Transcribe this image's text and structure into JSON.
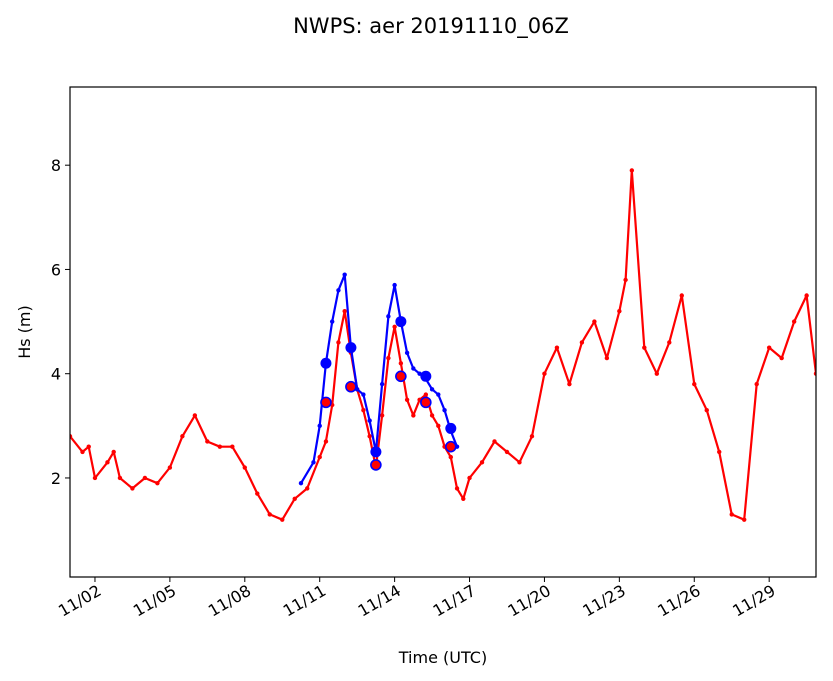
{
  "chart_data": {
    "type": "line",
    "title": "NWPS: aer 20191110_06Z",
    "xlabel": "Time (UTC)",
    "ylabel": "Hs (m)",
    "xlim": [
      "2019-11-01T00:00",
      "2019-11-30T21:00"
    ],
    "ylim": [
      0.1,
      9.5
    ],
    "x_tick_labels": [
      "11/02",
      "11/05",
      "11/08",
      "11/11",
      "11/14",
      "11/17",
      "11/20",
      "11/23",
      "11/26",
      "11/29"
    ],
    "x_tick_dates": [
      "2019-11-02",
      "2019-11-05",
      "2019-11-08",
      "2019-11-11",
      "2019-11-14",
      "2019-11-17",
      "2019-11-20",
      "2019-11-23",
      "2019-11-26",
      "2019-11-29"
    ],
    "y_ticks": [
      2,
      4,
      6,
      8
    ],
    "grid": false,
    "legend": "none",
    "series": [
      {
        "color": "#ff0000",
        "marker": "dot",
        "x": [
          "2019-11-01T00:00",
          "2019-11-01T12:00",
          "2019-11-01T18:00",
          "2019-11-02T00:00",
          "2019-11-02T12:00",
          "2019-11-02T18:00",
          "2019-11-03T00:00",
          "2019-11-03T12:00",
          "2019-11-04T00:00",
          "2019-11-04T12:00",
          "2019-11-05T00:00",
          "2019-11-05T12:00",
          "2019-11-06T00:00",
          "2019-11-06T12:00",
          "2019-11-07T00:00",
          "2019-11-07T12:00",
          "2019-11-08T00:00",
          "2019-11-08T12:00",
          "2019-11-09T00:00",
          "2019-11-09T12:00",
          "2019-11-10T00:00",
          "2019-11-10T12:00",
          "2019-11-11T00:00",
          "2019-11-11T06:00",
          "2019-11-11T12:00",
          "2019-11-11T18:00",
          "2019-11-12T00:00",
          "2019-11-12T06:00",
          "2019-11-12T12:00",
          "2019-11-12T18:00",
          "2019-11-13T00:00",
          "2019-11-13T06:00",
          "2019-11-13T12:00",
          "2019-11-13T18:00",
          "2019-11-14T00:00",
          "2019-11-14T06:00",
          "2019-11-14T12:00",
          "2019-11-14T18:00",
          "2019-11-15T00:00",
          "2019-11-15T06:00",
          "2019-11-15T12:00",
          "2019-11-15T18:00",
          "2019-11-16T00:00",
          "2019-11-16T06:00",
          "2019-11-16T12:00",
          "2019-11-16T18:00",
          "2019-11-17T00:00",
          "2019-11-17T12:00",
          "2019-11-18T00:00",
          "2019-11-18T12:00",
          "2019-11-19T00:00",
          "2019-11-19T12:00",
          "2019-11-20T00:00",
          "2019-11-20T12:00",
          "2019-11-21T00:00",
          "2019-11-21T12:00",
          "2019-11-22T00:00",
          "2019-11-22T12:00",
          "2019-11-23T00:00",
          "2019-11-23T06:00",
          "2019-11-23T12:00",
          "2019-11-24T00:00",
          "2019-11-24T12:00",
          "2019-11-25T00:00",
          "2019-11-25T12:00",
          "2019-11-26T00:00",
          "2019-11-26T12:00",
          "2019-11-27T00:00",
          "2019-11-27T12:00",
          "2019-11-28T00:00",
          "2019-11-28T12:00",
          "2019-11-29T00:00",
          "2019-11-29T12:00",
          "2019-11-30T00:00",
          "2019-11-30T12:00",
          "2019-11-30T21:00"
        ],
        "y": [
          2.8,
          2.5,
          2.6,
          2.0,
          2.3,
          2.5,
          2.0,
          1.8,
          2.0,
          1.9,
          2.2,
          2.8,
          3.2,
          2.7,
          2.6,
          2.6,
          2.2,
          1.7,
          1.3,
          1.2,
          1.6,
          1.8,
          2.4,
          2.7,
          3.4,
          4.6,
          5.2,
          4.4,
          3.7,
          3.3,
          2.8,
          2.2,
          3.2,
          4.3,
          4.9,
          4.2,
          3.5,
          3.2,
          3.5,
          3.6,
          3.2,
          3.0,
          2.6,
          2.4,
          1.8,
          1.6,
          2.0,
          2.3,
          2.7,
          2.5,
          2.3,
          2.8,
          4.0,
          4.5,
          3.8,
          4.6,
          5.0,
          4.3,
          5.2,
          5.8,
          7.9,
          4.5,
          4.0,
          4.6,
          5.5,
          3.8,
          3.3,
          2.5,
          1.3,
          1.2,
          3.8,
          4.5,
          4.3,
          5.0,
          5.5,
          4.0
        ]
      },
      {
        "color": "#0000ff",
        "marker": "dot",
        "x": [
          "2019-11-10T06:00",
          "2019-11-10T18:00",
          "2019-11-11T00:00",
          "2019-11-11T06:00",
          "2019-11-11T12:00",
          "2019-11-11T18:00",
          "2019-11-12T00:00",
          "2019-11-12T06:00",
          "2019-11-12T12:00",
          "2019-11-12T18:00",
          "2019-11-13T00:00",
          "2019-11-13T06:00",
          "2019-11-13T12:00",
          "2019-11-13T18:00",
          "2019-11-14T00:00",
          "2019-11-14T06:00",
          "2019-11-14T12:00",
          "2019-11-14T18:00",
          "2019-11-15T00:00",
          "2019-11-15T06:00",
          "2019-11-15T12:00",
          "2019-11-15T18:00",
          "2019-11-16T00:00",
          "2019-11-16T06:00",
          "2019-11-16T12:00"
        ],
        "y": [
          1.9,
          2.3,
          3.0,
          4.2,
          5.0,
          5.6,
          5.9,
          4.5,
          3.7,
          3.6,
          3.1,
          2.5,
          3.8,
          5.1,
          5.7,
          5.0,
          4.4,
          4.1,
          4.0,
          3.9,
          3.7,
          3.6,
          3.3,
          2.9,
          2.6
        ]
      }
    ],
    "highlight_points": {
      "blue": {
        "color": "#0000ff",
        "x": [
          "2019-11-11T06:00",
          "2019-11-12T06:00",
          "2019-11-13T06:00",
          "2019-11-14T06:00",
          "2019-11-15T06:00",
          "2019-11-16T06:00"
        ],
        "y": [
          4.2,
          4.5,
          2.5,
          5.0,
          3.95,
          2.95
        ]
      },
      "red_outlined": {
        "color": "#ff0000",
        "edge_color": "#0000ff",
        "x": [
          "2019-11-11T06:00",
          "2019-11-12T06:00",
          "2019-11-13T06:00",
          "2019-11-14T06:00",
          "2019-11-15T06:00",
          "2019-11-16T06:00"
        ],
        "y": [
          3.45,
          3.75,
          2.25,
          3.95,
          3.45,
          2.6
        ]
      }
    }
  }
}
